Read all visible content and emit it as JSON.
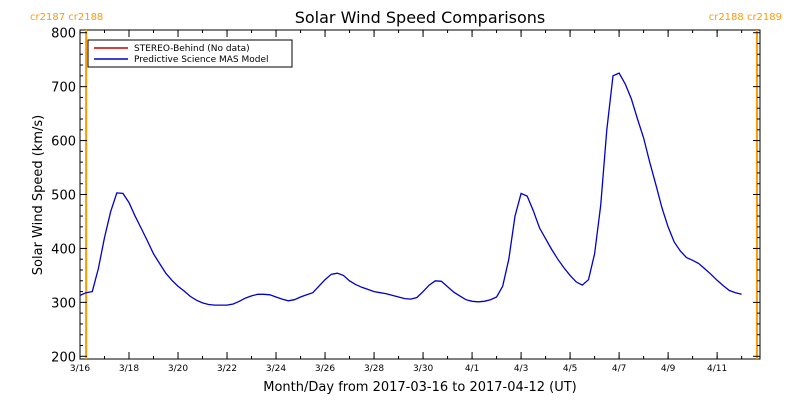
{
  "chart_data": {
    "type": "line",
    "title": "Solar Wind Speed Comparisons",
    "xlabel": "Month/Day from 2017-03-16 to 2017-04-12 (UT)",
    "ylabel": "Solar Wind Speed (km/s)",
    "ylim": [
      195,
      805
    ],
    "xlim": [
      "2017-03-16",
      "2017-04-12 18:00"
    ],
    "yticks": [
      200,
      300,
      400,
      500,
      600,
      700,
      800
    ],
    "xticks": [
      {
        "date": "2017-03-16",
        "label": "3/16"
      },
      {
        "date": "2017-03-18",
        "label": "3/18"
      },
      {
        "date": "2017-03-20",
        "label": "3/20"
      },
      {
        "date": "2017-03-22",
        "label": "3/22"
      },
      {
        "date": "2017-03-24",
        "label": "3/24"
      },
      {
        "date": "2017-03-26",
        "label": "3/26"
      },
      {
        "date": "2017-03-28",
        "label": "3/28"
      },
      {
        "date": "2017-03-30",
        "label": "3/30"
      },
      {
        "date": "2017-04-01",
        "label": "4/1"
      },
      {
        "date": "2017-04-03",
        "label": "4/3"
      },
      {
        "date": "2017-04-05",
        "label": "4/5"
      },
      {
        "date": "2017-04-07",
        "label": "4/7"
      },
      {
        "date": "2017-04-09",
        "label": "4/9"
      },
      {
        "date": "2017-04-11",
        "label": "4/11"
      }
    ],
    "legend": {
      "placement": "top-left",
      "entries": [
        {
          "label": "STEREO-Behind (No data)",
          "color": "#cc0000"
        },
        {
          "label": "Predictive Science MAS Model",
          "color": "#0000cc"
        }
      ]
    },
    "markers": [
      {
        "date": "2017-03-16 06:00",
        "label": "cr2187 cr2188",
        "color": "#ff9900"
      },
      {
        "date": "2017-04-12 15:00",
        "label": "cr2188 cr2189",
        "color": "#ff9900"
      }
    ],
    "series": [
      {
        "name": "Predictive Science MAS Model",
        "color": "#0000cc",
        "points": [
          [
            "2017-03-16 00:00",
            313
          ],
          [
            "2017-03-16 06:00",
            318
          ],
          [
            "2017-03-16 12:00",
            320
          ],
          [
            "2017-03-16 18:00",
            363
          ],
          [
            "2017-03-17 00:00",
            420
          ],
          [
            "2017-03-17 06:00",
            468
          ],
          [
            "2017-03-17 12:00",
            503
          ],
          [
            "2017-03-17 18:00",
            502
          ],
          [
            "2017-03-18 00:00",
            485
          ],
          [
            "2017-03-18 06:00",
            460
          ],
          [
            "2017-03-18 12:00",
            437
          ],
          [
            "2017-03-18 18:00",
            414
          ],
          [
            "2017-03-19 00:00",
            390
          ],
          [
            "2017-03-19 06:00",
            372
          ],
          [
            "2017-03-19 12:00",
            354
          ],
          [
            "2017-03-19 18:00",
            341
          ],
          [
            "2017-03-20 00:00",
            330
          ],
          [
            "2017-03-20 06:00",
            321
          ],
          [
            "2017-03-20 12:00",
            311
          ],
          [
            "2017-03-20 18:00",
            304
          ],
          [
            "2017-03-21 00:00",
            299
          ],
          [
            "2017-03-21 06:00",
            296
          ],
          [
            "2017-03-21 12:00",
            295
          ],
          [
            "2017-03-21 18:00",
            295
          ],
          [
            "2017-03-22 00:00",
            295
          ],
          [
            "2017-03-22 06:00",
            297
          ],
          [
            "2017-03-22 12:00",
            302
          ],
          [
            "2017-03-22 18:00",
            308
          ],
          [
            "2017-03-23 00:00",
            312
          ],
          [
            "2017-03-23 06:00",
            315
          ],
          [
            "2017-03-23 12:00",
            315
          ],
          [
            "2017-03-23 18:00",
            314
          ],
          [
            "2017-03-24 00:00",
            310
          ],
          [
            "2017-03-24 06:00",
            306
          ],
          [
            "2017-03-24 12:00",
            303
          ],
          [
            "2017-03-24 18:00",
            305
          ],
          [
            "2017-03-25 00:00",
            310
          ],
          [
            "2017-03-25 06:00",
            314
          ],
          [
            "2017-03-25 12:00",
            318
          ],
          [
            "2017-03-25 18:00",
            330
          ],
          [
            "2017-03-26 00:00",
            342
          ],
          [
            "2017-03-26 06:00",
            352
          ],
          [
            "2017-03-26 12:00",
            354
          ],
          [
            "2017-03-26 18:00",
            350
          ],
          [
            "2017-03-27 00:00",
            340
          ],
          [
            "2017-03-27 06:00",
            333
          ],
          [
            "2017-03-27 12:00",
            328
          ],
          [
            "2017-03-27 18:00",
            324
          ],
          [
            "2017-03-28 00:00",
            320
          ],
          [
            "2017-03-28 06:00",
            318
          ],
          [
            "2017-03-28 12:00",
            316
          ],
          [
            "2017-03-28 18:00",
            313
          ],
          [
            "2017-03-29 00:00",
            310
          ],
          [
            "2017-03-29 06:00",
            307
          ],
          [
            "2017-03-29 12:00",
            306
          ],
          [
            "2017-03-29 18:00",
            309
          ],
          [
            "2017-03-30 00:00",
            320
          ],
          [
            "2017-03-30 06:00",
            332
          ],
          [
            "2017-03-30 12:00",
            340
          ],
          [
            "2017-03-30 18:00",
            339
          ],
          [
            "2017-03-31 00:00",
            329
          ],
          [
            "2017-03-31 06:00",
            319
          ],
          [
            "2017-03-31 12:00",
            312
          ],
          [
            "2017-03-31 18:00",
            305
          ],
          [
            "2017-04-01 00:00",
            302
          ],
          [
            "2017-04-01 06:00",
            301
          ],
          [
            "2017-04-01 12:00",
            302
          ],
          [
            "2017-04-01 18:00",
            305
          ],
          [
            "2017-04-02 00:00",
            310
          ],
          [
            "2017-04-02 06:00",
            330
          ],
          [
            "2017-04-02 12:00",
            380
          ],
          [
            "2017-04-02 18:00",
            460
          ],
          [
            "2017-04-03 00:00",
            502
          ],
          [
            "2017-04-03 06:00",
            497
          ],
          [
            "2017-04-03 12:00",
            470
          ],
          [
            "2017-04-03 18:00",
            438
          ],
          [
            "2017-04-04 00:00",
            418
          ],
          [
            "2017-04-04 06:00",
            398
          ],
          [
            "2017-04-04 12:00",
            380
          ],
          [
            "2017-04-04 18:00",
            364
          ],
          [
            "2017-04-05 00:00",
            350
          ],
          [
            "2017-04-05 06:00",
            338
          ],
          [
            "2017-04-05 12:00",
            332
          ],
          [
            "2017-04-05 18:00",
            342
          ],
          [
            "2017-04-06 00:00",
            390
          ],
          [
            "2017-04-06 06:00",
            480
          ],
          [
            "2017-04-06 12:00",
            620
          ],
          [
            "2017-04-06 18:00",
            720
          ],
          [
            "2017-04-07 00:00",
            725
          ],
          [
            "2017-04-07 06:00",
            705
          ],
          [
            "2017-04-07 12:00",
            677
          ],
          [
            "2017-04-07 18:00",
            640
          ],
          [
            "2017-04-08 00:00",
            605
          ],
          [
            "2017-04-08 06:00",
            560
          ],
          [
            "2017-04-08 12:00",
            518
          ],
          [
            "2017-04-08 18:00",
            475
          ],
          [
            "2017-04-09 00:00",
            440
          ],
          [
            "2017-04-09 06:00",
            412
          ],
          [
            "2017-04-09 12:00",
            395
          ],
          [
            "2017-04-09 18:00",
            383
          ],
          [
            "2017-04-10 00:00",
            378
          ],
          [
            "2017-04-10 06:00",
            372
          ],
          [
            "2017-04-10 12:00",
            362
          ],
          [
            "2017-04-10 18:00",
            352
          ],
          [
            "2017-04-11 00:00",
            341
          ],
          [
            "2017-04-11 06:00",
            331
          ],
          [
            "2017-04-11 12:00",
            322
          ],
          [
            "2017-04-11 18:00",
            318
          ],
          [
            "2017-04-12 00:00",
            315
          ]
        ]
      }
    ]
  }
}
